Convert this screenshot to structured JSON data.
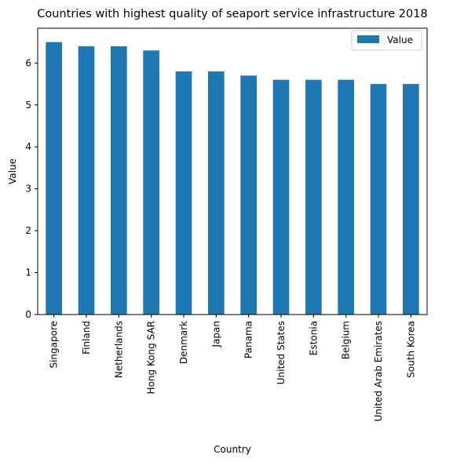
{
  "chart_data": {
    "type": "bar",
    "title": "Countries with highest quality of seaport service infrastructure 2018",
    "xlabel": "Country",
    "ylabel": "Value",
    "categories": [
      "Singapore",
      "Finland",
      "Netherlands",
      "Hong Kong SAR",
      "Denmark",
      "Japan",
      "Panama",
      "United States",
      "Estonia",
      "Belgium",
      "United Arab Emirates",
      "South Korea"
    ],
    "series": [
      {
        "name": "Value",
        "values": [
          6.5,
          6.4,
          6.4,
          6.3,
          5.8,
          5.8,
          5.7,
          5.6,
          5.6,
          5.6,
          5.5,
          5.5
        ]
      }
    ],
    "ylim": [
      0,
      6.83
    ],
    "yticks": [
      0,
      1,
      2,
      3,
      4,
      5,
      6
    ],
    "grid": false,
    "legend_position": "top-right",
    "bar_color": "#1f77b4"
  }
}
